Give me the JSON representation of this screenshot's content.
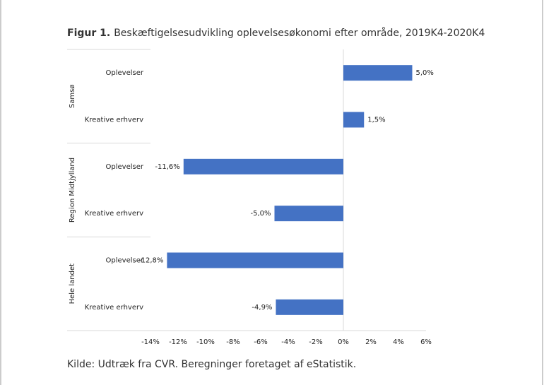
{
  "chart_data": {
    "type": "bar",
    "orientation": "horizontal",
    "title_label": "Figur 1.",
    "title": "Beskæftigelsesudvikling oplevelsesøkonomi efter område, 2019K4-2020K4",
    "source": "Kilde: Udtræk fra CVR. Beregninger foretaget af eStatistik.",
    "color": "#4472c4",
    "groups": [
      {
        "name": "Samsø",
        "categories": [
          "Oplevelser",
          "Kreative erhverv"
        ],
        "values": [
          5.0,
          1.5
        ],
        "value_labels": [
          "5,0%",
          "1,5%"
        ]
      },
      {
        "name": "Region Midtjylland",
        "categories": [
          "Oplevelser",
          "Kreative erhverv"
        ],
        "values": [
          -11.6,
          -5.0
        ],
        "value_labels": [
          "-11,6%",
          "-5,0%"
        ]
      },
      {
        "name": "Hele landet",
        "categories": [
          "Oplevelser",
          "Kreative erhverv"
        ],
        "values": [
          -12.8,
          -4.9
        ],
        "value_labels": [
          "-12,8%",
          "-4,9%"
        ]
      }
    ],
    "xlim": [
      -14,
      6
    ],
    "xticks": [
      {
        "value": -14,
        "label": "-14%"
      },
      {
        "value": -12,
        "label": "-12%"
      },
      {
        "value": -10,
        "label": "-10%"
      },
      {
        "value": -8,
        "label": "-8%"
      },
      {
        "value": -6,
        "label": "-6%"
      },
      {
        "value": -4,
        "label": "-4%"
      },
      {
        "value": -2,
        "label": "-2%"
      },
      {
        "value": 0,
        "label": "0%"
      },
      {
        "value": 2,
        "label": "2%"
      },
      {
        "value": 4,
        "label": "4%"
      },
      {
        "value": 6,
        "label": "6%"
      }
    ]
  }
}
